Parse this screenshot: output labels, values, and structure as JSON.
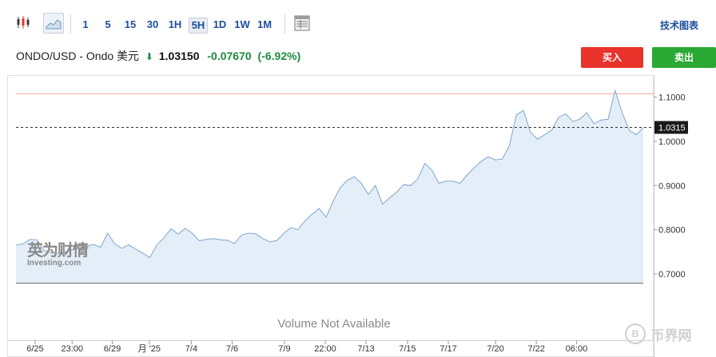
{
  "toolbar": {
    "intervals": [
      {
        "label": "1",
        "active": false
      },
      {
        "label": "5",
        "active": false
      },
      {
        "label": "15",
        "active": false
      },
      {
        "label": "30",
        "active": false
      },
      {
        "label": "1H",
        "active": false
      },
      {
        "label": "5H",
        "active": true
      },
      {
        "label": "1D",
        "active": false
      },
      {
        "label": "1W",
        "active": false
      },
      {
        "label": "1M",
        "active": false
      }
    ],
    "tech_chart_label": "技术图表"
  },
  "quote": {
    "symbol": "ONDO/USD - Ondo 美元",
    "price": "1.03150",
    "change": "-0.07670",
    "change_pct": "(-6.92%)"
  },
  "actions": {
    "buy_label": "买入",
    "sell_label": "卖出"
  },
  "watermark": {
    "brand": "英为财情",
    "sub": "Investing.com"
  },
  "volume_note": "Volume Not Available",
  "corner_badge": "币界网",
  "colors": {
    "line": "#7ea7cf",
    "area": "#e4eef8",
    "ref_line": "#f2a8a0",
    "sell": "#2aa834",
    "buy": "#e8332a",
    "link": "#1c4e9e"
  },
  "chart_data": {
    "type": "area",
    "current_value": 1.0315,
    "current_label": "1.0315",
    "reference_line": 1.1075,
    "ylim": [
      0.68,
      1.15
    ],
    "yticks": [
      {
        "value": 1.1,
        "label": "1.1000"
      },
      {
        "value": 1.0,
        "label": "1.0000"
      },
      {
        "value": 0.9,
        "label": "0.9000"
      },
      {
        "value": 0.8,
        "label": "0.8000"
      },
      {
        "value": 0.7,
        "label": "0.7000"
      }
    ],
    "xlim": [
      0,
      100
    ],
    "xticks": [
      {
        "pos": 3,
        "label": "6/25"
      },
      {
        "pos": 8.8,
        "label": "23:00"
      },
      {
        "pos": 15.1,
        "label": "6/29"
      },
      {
        "pos": 20.9,
        "label": "月 '25"
      },
      {
        "pos": 27.5,
        "label": "7/4"
      },
      {
        "pos": 33.9,
        "label": "7/6"
      },
      {
        "pos": 42.1,
        "label": "7/9"
      },
      {
        "pos": 48.5,
        "label": "22:00"
      },
      {
        "pos": 54.9,
        "label": "7/13"
      },
      {
        "pos": 61.4,
        "label": "7/15"
      },
      {
        "pos": 67.8,
        "label": "7/17"
      },
      {
        "pos": 75.2,
        "label": "7/20"
      },
      {
        "pos": 81.6,
        "label": "7/22"
      },
      {
        "pos": 87.9,
        "label": "06:00"
      }
    ],
    "x": [
      0,
      1,
      2,
      3,
      4,
      5,
      6,
      7,
      8,
      9,
      10,
      11,
      12,
      13,
      14,
      15,
      16,
      17,
      18,
      19,
      20,
      21,
      22,
      23,
      24,
      25,
      26,
      27,
      28,
      29,
      30,
      31,
      32,
      33,
      34,
      35,
      36,
      37,
      38,
      39,
      40,
      41,
      42,
      43,
      44,
      45,
      46,
      47,
      48,
      49,
      50,
      51,
      52,
      53,
      54,
      55,
      56,
      57,
      58,
      59,
      60,
      61,
      62,
      63,
      64,
      65,
      66,
      67,
      68,
      69,
      70,
      71,
      72,
      73,
      74,
      75,
      76,
      77,
      78,
      79,
      80,
      81,
      82,
      83,
      84,
      85,
      86,
      87,
      88,
      89
    ],
    "values": [
      0.765,
      0.768,
      0.778,
      0.777,
      0.753,
      0.748,
      0.746,
      0.75,
      0.755,
      0.758,
      0.762,
      0.767,
      0.76,
      0.792,
      0.768,
      0.758,
      0.766,
      0.756,
      0.747,
      0.737,
      0.766,
      0.782,
      0.802,
      0.79,
      0.803,
      0.792,
      0.775,
      0.778,
      0.78,
      0.777,
      0.776,
      0.769,
      0.788,
      0.792,
      0.791,
      0.78,
      0.773,
      0.775,
      0.792,
      0.805,
      0.8,
      0.82,
      0.835,
      0.848,
      0.828,
      0.865,
      0.895,
      0.912,
      0.92,
      0.905,
      0.88,
      0.9,
      0.858,
      0.872,
      0.885,
      0.902,
      0.9,
      0.915,
      0.95,
      0.935,
      0.905,
      0.91,
      0.91,
      0.905,
      0.924,
      0.94,
      0.955,
      0.965,
      0.958,
      0.96,
      0.99,
      1.06,
      1.07,
      1.02,
      1.005,
      1.015,
      1.025,
      1.055,
      1.062,
      1.045,
      1.05,
      1.065,
      1.04,
      1.048,
      1.05,
      1.115,
      1.065,
      1.025,
      1.015,
      1.0315
    ]
  }
}
